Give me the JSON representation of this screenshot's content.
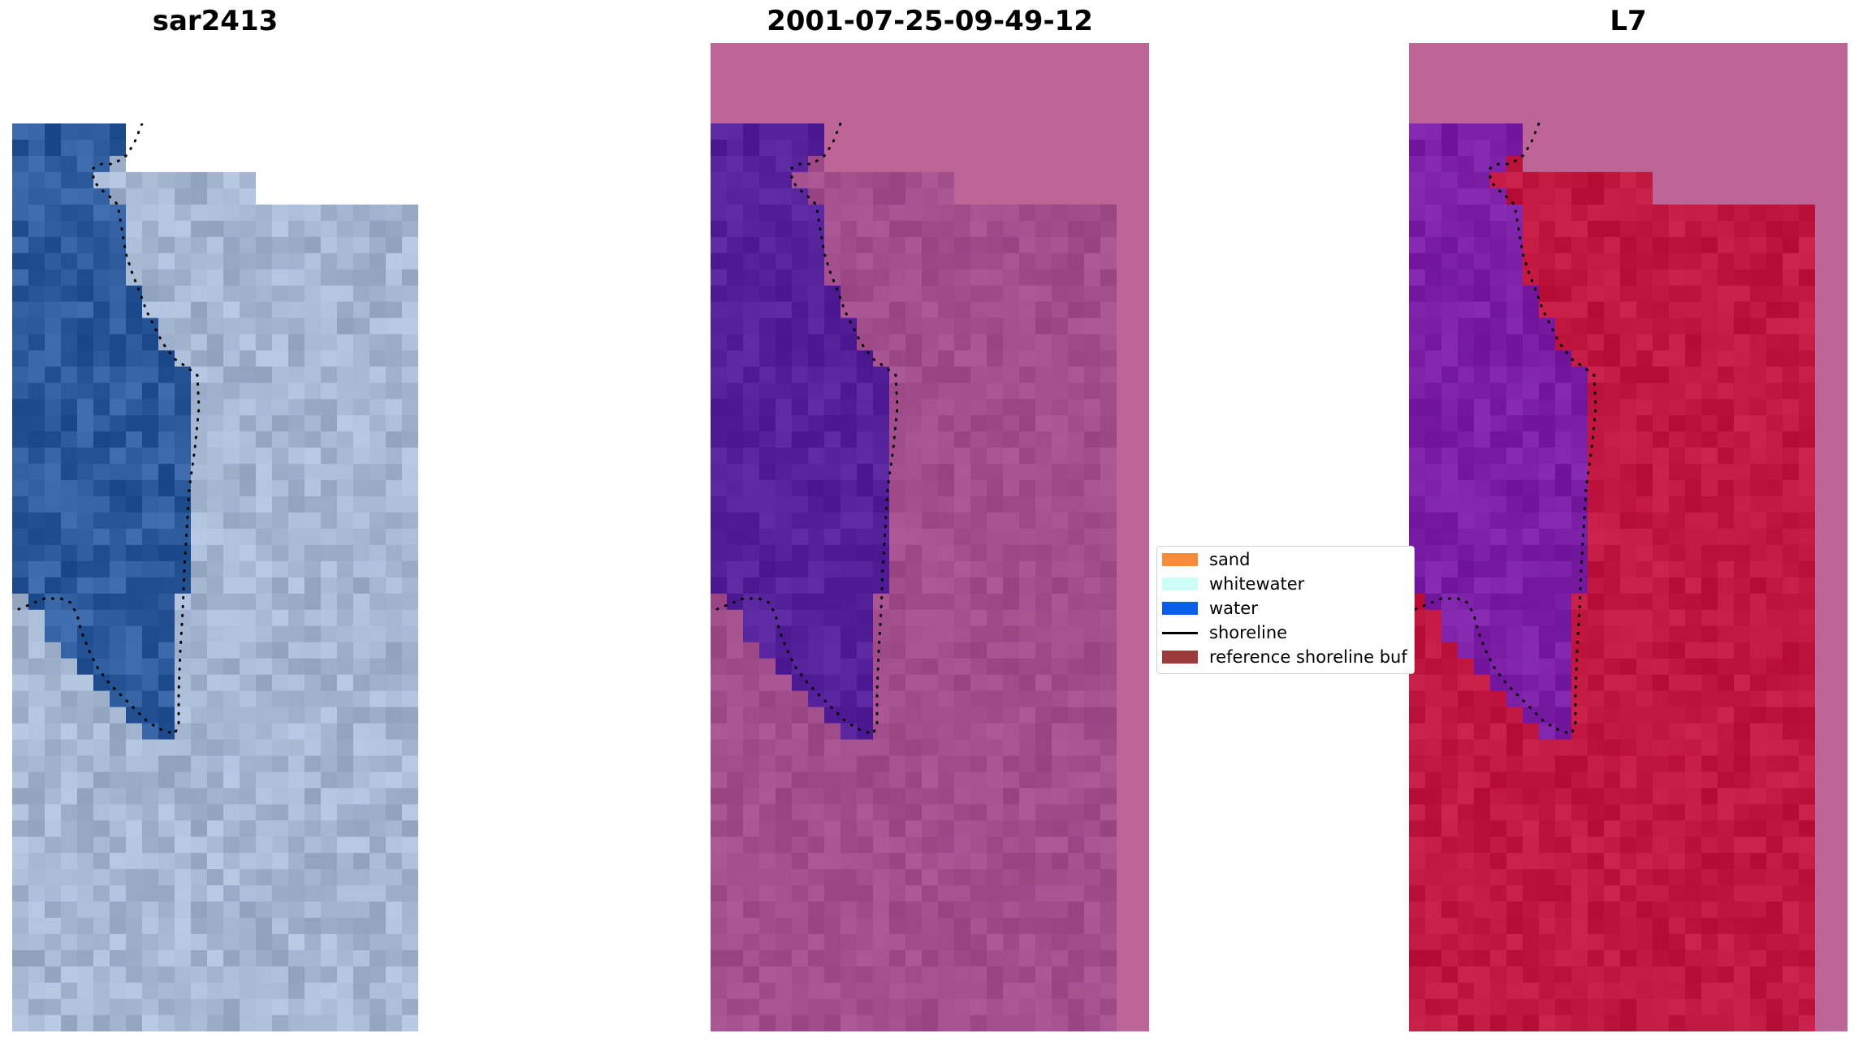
{
  "panels": [
    {
      "title": "sar2413"
    },
    {
      "title": "2001-07-25-09-49-12"
    },
    {
      "title": "L7"
    }
  ],
  "legend": {
    "items": [
      {
        "label": "sand",
        "color": "#f88b3a",
        "kind": "patch"
      },
      {
        "label": "whitewater",
        "color": "#ccfff8",
        "kind": "patch"
      },
      {
        "label": "water",
        "color": "#0b5ee8",
        "kind": "patch"
      },
      {
        "label": "shoreline",
        "color": "#000000",
        "kind": "line"
      },
      {
        "label": "reference shoreline buf",
        "color": "#9b3a3a",
        "kind": "patch"
      }
    ]
  },
  "colors": {
    "rgb_water": "#2c5a9a",
    "rgb_land": "#a4b6d2",
    "class_water": "#55219a",
    "class_land": "#a24d8c",
    "class_buffer": "#bc6596",
    "ndwi_water": "#7a1fa6",
    "ndwi_land": "#c01640"
  }
}
